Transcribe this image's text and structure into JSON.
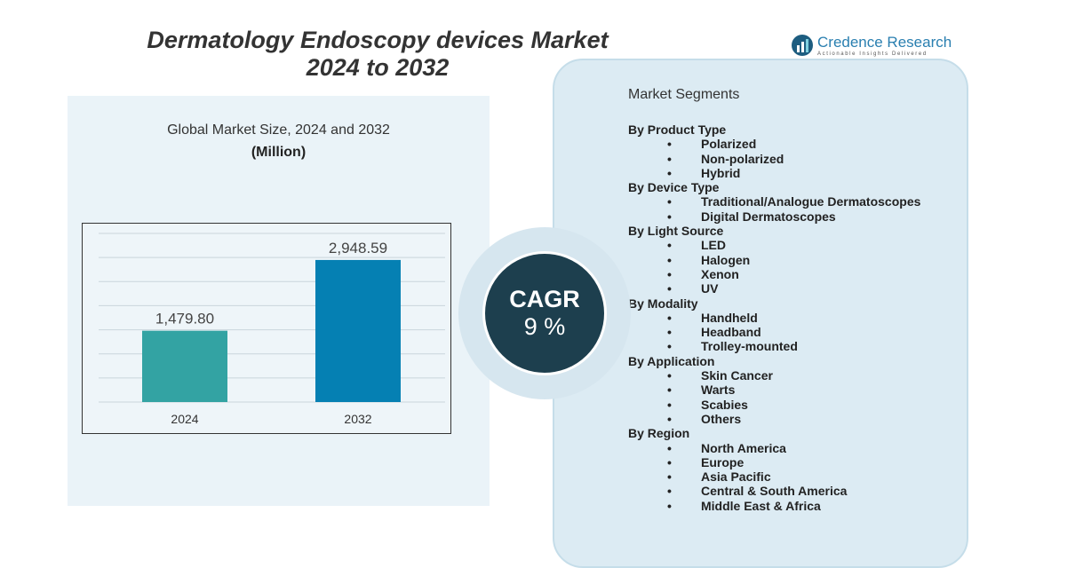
{
  "title_line1": "Dermatology Endoscopy devices Market",
  "title_line2": "2024 to 2032",
  "logo": {
    "name": "Credence Research",
    "tagline": "Actionable Insights Delivered"
  },
  "chart_header": {
    "subtitle": "Global Market Size, 2024 and 2032",
    "unit": "(Million)"
  },
  "chart_data": {
    "type": "bar",
    "categories": [
      "2024",
      "2032"
    ],
    "values": [
      1479.8,
      2948.59
    ],
    "labels": [
      "1,479.80",
      "2,948.59"
    ],
    "colors": [
      "#33a3a3",
      "#0580b3"
    ],
    "ylim": [
      0,
      3500
    ],
    "grid": true
  },
  "cagr": {
    "label": "CAGR",
    "value": "9 %"
  },
  "segments": {
    "title": "Market Segments",
    "groups": [
      {
        "name": "By Product Type",
        "items": [
          "Polarized",
          "Non-polarized",
          "Hybrid"
        ]
      },
      {
        "name": "By Device Type",
        "items": [
          "Traditional/Analogue Dermatoscopes",
          "Digital Dermatoscopes"
        ]
      },
      {
        "name": "By Light Source",
        "items": [
          "LED",
          "Halogen",
          "Xenon",
          "UV"
        ]
      },
      {
        "name": "By Modality",
        "items": [
          "Handheld",
          "Headband",
          "Trolley-mounted"
        ]
      },
      {
        "name": "By Application",
        "items": [
          "Skin Cancer",
          "Warts",
          "Scabies",
          "Others"
        ]
      },
      {
        "name": "By Region",
        "items": [
          "North America",
          "Europe",
          "Asia Pacific",
          "Central & South America",
          "Middle East & Africa"
        ]
      }
    ]
  }
}
